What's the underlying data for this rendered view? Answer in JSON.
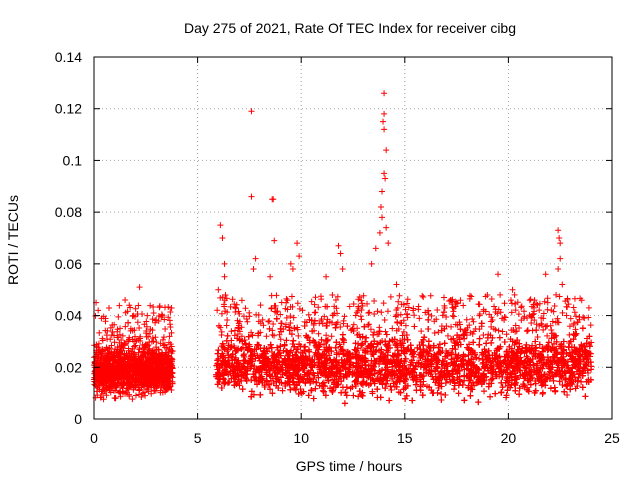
{
  "chart_data": {
    "type": "scatter",
    "title": "Day 275 of 2021, Rate Of TEC Index for receiver cibg",
    "xlabel": "GPS time / hours",
    "ylabel": "ROTI / TECUs",
    "xlim": [
      0,
      25
    ],
    "ylim": [
      0,
      0.14
    ],
    "xticks": [
      0,
      5,
      10,
      15,
      20,
      25
    ],
    "xtick_labels": [
      "0",
      "5",
      "10",
      "15",
      "20",
      "25"
    ],
    "yticks": [
      0,
      0.02,
      0.04,
      0.06,
      0.08,
      0.1,
      0.12,
      0.14
    ],
    "ytick_labels": [
      "0",
      "0.02",
      "0.04",
      "0.06",
      "0.08",
      "0.1",
      "0.12",
      "0.14"
    ],
    "grid": true,
    "marker": "+",
    "color": "#ff0000",
    "data_gap_hours": [
      3.8,
      5.9
    ],
    "series": [
      {
        "name": "ROTI",
        "segments": [
          {
            "x_start": 0.0,
            "x_end": 3.8,
            "baseline_low": 0.006,
            "baseline_high": 0.028
          },
          {
            "x_start": 5.9,
            "x_end": 24.0,
            "baseline_low": 0.005,
            "baseline_high": 0.032
          }
        ],
        "notable_points": [
          {
            "x": 0.1,
            "y": 0.045
          },
          {
            "x": 0.2,
            "y": 0.042
          },
          {
            "x": 1.5,
            "y": 0.046
          },
          {
            "x": 1.7,
            "y": 0.044
          },
          {
            "x": 2.2,
            "y": 0.051
          },
          {
            "x": 1.9,
            "y": 0.04
          },
          {
            "x": 3.3,
            "y": 0.04
          },
          {
            "x": 6.1,
            "y": 0.075
          },
          {
            "x": 6.2,
            "y": 0.07
          },
          {
            "x": 6.3,
            "y": 0.06
          },
          {
            "x": 6.3,
            "y": 0.055
          },
          {
            "x": 6.0,
            "y": 0.05
          },
          {
            "x": 7.6,
            "y": 0.119
          },
          {
            "x": 7.6,
            "y": 0.086
          },
          {
            "x": 7.8,
            "y": 0.062
          },
          {
            "x": 7.7,
            "y": 0.058
          },
          {
            "x": 8.6,
            "y": 0.085
          },
          {
            "x": 8.65,
            "y": 0.085
          },
          {
            "x": 8.7,
            "y": 0.069
          },
          {
            "x": 8.5,
            "y": 0.055
          },
          {
            "x": 9.5,
            "y": 0.06
          },
          {
            "x": 9.8,
            "y": 0.068
          },
          {
            "x": 9.9,
            "y": 0.063
          },
          {
            "x": 9.6,
            "y": 0.058
          },
          {
            "x": 11.2,
            "y": 0.055
          },
          {
            "x": 11.8,
            "y": 0.067
          },
          {
            "x": 11.9,
            "y": 0.064
          },
          {
            "x": 12.0,
            "y": 0.058
          },
          {
            "x": 13.4,
            "y": 0.06
          },
          {
            "x": 13.6,
            "y": 0.066
          },
          {
            "x": 13.8,
            "y": 0.072
          },
          {
            "x": 14.0,
            "y": 0.126
          },
          {
            "x": 14.0,
            "y": 0.118
          },
          {
            "x": 13.95,
            "y": 0.115
          },
          {
            "x": 14.0,
            "y": 0.112
          },
          {
            "x": 14.1,
            "y": 0.104
          },
          {
            "x": 14.0,
            "y": 0.095
          },
          {
            "x": 14.05,
            "y": 0.093
          },
          {
            "x": 13.9,
            "y": 0.088
          },
          {
            "x": 13.85,
            "y": 0.082
          },
          {
            "x": 13.9,
            "y": 0.078
          },
          {
            "x": 14.1,
            "y": 0.074
          },
          {
            "x": 14.2,
            "y": 0.068
          },
          {
            "x": 14.6,
            "y": 0.052
          },
          {
            "x": 15.4,
            "y": 0.042
          },
          {
            "x": 17.5,
            "y": 0.045
          },
          {
            "x": 18.6,
            "y": 0.04
          },
          {
            "x": 19.5,
            "y": 0.056
          },
          {
            "x": 19.6,
            "y": 0.048
          },
          {
            "x": 20.2,
            "y": 0.05
          },
          {
            "x": 20.3,
            "y": 0.048
          },
          {
            "x": 21.8,
            "y": 0.056
          },
          {
            "x": 21.9,
            "y": 0.045
          },
          {
            "x": 22.4,
            "y": 0.073
          },
          {
            "x": 22.45,
            "y": 0.07
          },
          {
            "x": 22.5,
            "y": 0.068
          },
          {
            "x": 22.5,
            "y": 0.062
          },
          {
            "x": 22.4,
            "y": 0.058
          },
          {
            "x": 22.6,
            "y": 0.052
          },
          {
            "x": 22.3,
            "y": 0.048
          }
        ]
      }
    ]
  }
}
